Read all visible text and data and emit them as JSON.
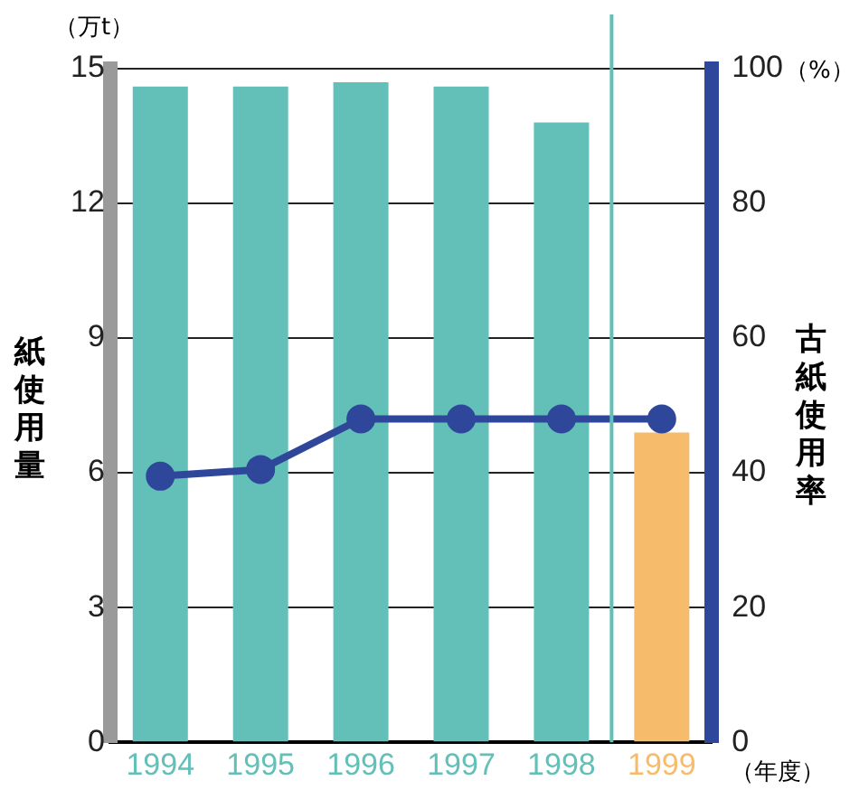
{
  "chart_data": {
    "type": "bar",
    "ylabel": "紙使用量",
    "y2label": "古紙使用率",
    "x": [
      1994,
      1995,
      1996,
      1997,
      1998,
      1999
    ],
    "xlim": [
      1993.5,
      1999.5
    ],
    "xticks": [
      1994,
      1995,
      1996,
      1997,
      1998,
      1999
    ],
    "series": [
      {
        "colors": [
          "#63c0b8",
          "#63c0b8",
          "#63c0b8",
          "#63c0b8",
          "#63c0b8",
          "#f6bc6b"
        ],
        "values": [
          14.6,
          14.6,
          14.7,
          14.6,
          13.8,
          6.9
        ]
      },
      {
        "type": "line",
        "axis": "y2",
        "color": "#2f479a",
        "values": [
          39.5,
          40.5,
          48,
          48,
          48,
          48
        ],
        "marker": "circle"
      }
    ],
    "ylim": [
      0,
      15
    ],
    "yticks": [
      0,
      3,
      6,
      9,
      12,
      15
    ],
    "y2lim": [
      0,
      100
    ],
    "y2ticks": [
      0,
      20,
      40,
      60,
      80,
      100
    ],
    "grid": "y",
    "legend": false,
    "ref_lines": [
      {
        "axis": "x",
        "value": 1998.5,
        "color": "#63c0b8"
      }
    ],
    "annotations": [
      "（万t）",
      "（%）",
      "（年度）"
    ]
  }
}
